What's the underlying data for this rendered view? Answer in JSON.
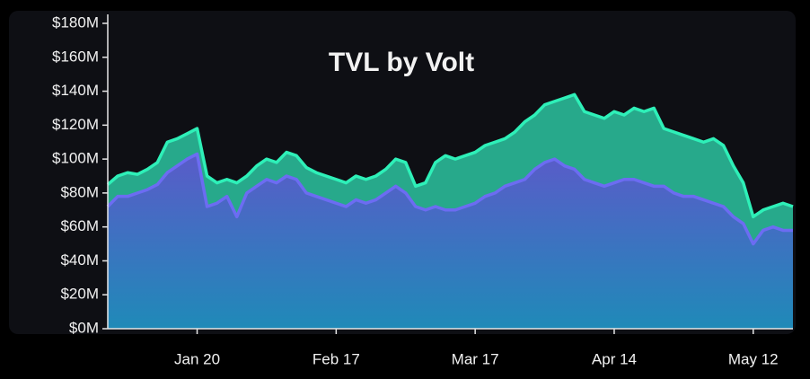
{
  "chart_data": {
    "type": "area",
    "stacked": true,
    "title": "TVL by Volt",
    "categories": [
      null,
      null,
      null,
      null,
      null,
      null,
      null,
      null,
      null,
      "Jan 20",
      null,
      null,
      null,
      null,
      null,
      null,
      null,
      null,
      null,
      null,
      null,
      null,
      null,
      "Feb 17",
      null,
      null,
      null,
      null,
      null,
      null,
      null,
      null,
      null,
      null,
      null,
      null,
      null,
      "Mar 17",
      null,
      null,
      null,
      null,
      null,
      null,
      null,
      null,
      null,
      null,
      null,
      null,
      null,
      "Apr 14",
      null,
      null,
      null,
      null,
      null,
      null,
      null,
      null,
      null,
      null,
      null,
      null,
      null,
      "May 12",
      null,
      null,
      null,
      null
    ],
    "series": [
      {
        "color": "#6c6cf2",
        "values": [
          72,
          78,
          78,
          80,
          82,
          85,
          92,
          96,
          100,
          103,
          72,
          74,
          78,
          66,
          80,
          84,
          88,
          86,
          90,
          88,
          80,
          78,
          76,
          74,
          72,
          76,
          74,
          76,
          80,
          84,
          80,
          72,
          70,
          72,
          70,
          70,
          72,
          74,
          78,
          80,
          84,
          86,
          88,
          94,
          98,
          100,
          96,
          94,
          88,
          86,
          84,
          86,
          88,
          88,
          86,
          84,
          84,
          80,
          78,
          78,
          76,
          74,
          72,
          66,
          62,
          50,
          58,
          60,
          58,
          58
        ]
      },
      {
        "color": "#2ef0b8",
        "values": [
          13,
          12,
          14,
          11,
          12,
          13,
          18,
          16,
          15,
          15,
          18,
          12,
          10,
          20,
          10,
          12,
          12,
          12,
          14,
          14,
          15,
          14,
          14,
          14,
          14,
          14,
          14,
          14,
          14,
          16,
          18,
          12,
          16,
          26,
          32,
          30,
          30,
          30,
          30,
          30,
          28,
          30,
          34,
          32,
          34,
          34,
          40,
          44,
          40,
          40,
          40,
          42,
          38,
          42,
          42,
          46,
          34,
          36,
          36,
          34,
          34,
          38,
          36,
          30,
          24,
          16,
          12,
          12,
          16,
          14
        ]
      }
    ],
    "ylim": [
      0,
      180
    ],
    "yticks": [
      {
        "value": 0,
        "label": "$0M"
      },
      {
        "value": 20,
        "label": "$20M"
      },
      {
        "value": 40,
        "label": "$40M"
      },
      {
        "value": 60,
        "label": "$60M"
      },
      {
        "value": 80,
        "label": "$80M"
      },
      {
        "value": 100,
        "label": "$100M"
      },
      {
        "value": 120,
        "label": "$120M"
      },
      {
        "value": 140,
        "label": "$140M"
      },
      {
        "value": 160,
        "label": "$160M"
      },
      {
        "value": 180,
        "label": "$180M"
      }
    ],
    "grid": false
  }
}
